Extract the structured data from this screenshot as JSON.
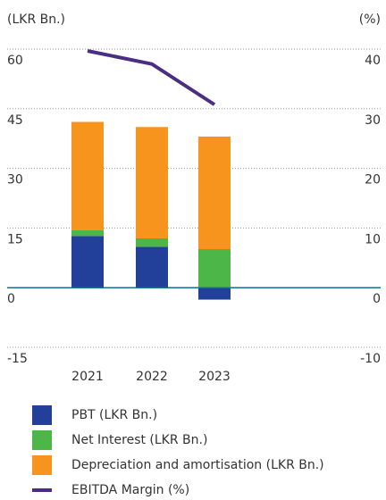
{
  "chart_data": {
    "type": "bar",
    "stacked": true,
    "y_label": "(LKR Bn.)",
    "y2_label": "(%)",
    "categories": [
      "2021",
      "2022",
      "2023"
    ],
    "series": [
      {
        "name": "PBT (LKR Bn.)",
        "color": "#22409a",
        "values": [
          13,
          10.3,
          -3
        ]
      },
      {
        "name": "Net Interest (LKR Bn.)",
        "color": "#4cb748",
        "values": [
          1.5,
          2.1,
          9.7
        ]
      },
      {
        "name": "Depreciation and amortisation (LKR Bn.)",
        "color": "#f7941d",
        "values": [
          27.2,
          28,
          28.3
        ]
      },
      {
        "name": "EBITDA Margin (%)",
        "color": "#4b2e83",
        "type": "line",
        "axis": "y2",
        "values": [
          39.7,
          37.5,
          30.7
        ]
      }
    ],
    "ylim": [
      -15,
      60
    ],
    "yticks": [
      -15,
      0,
      15,
      30,
      45,
      60
    ],
    "y2lim": [
      -10,
      40
    ],
    "y2ticks": [
      -10,
      0,
      10,
      20,
      30,
      40
    ],
    "grid": true
  }
}
